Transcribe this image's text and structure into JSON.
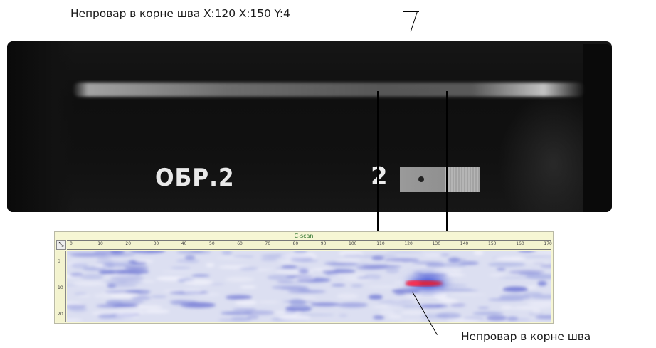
{
  "annotations": {
    "top": "Непровар в корне шва X:120 X:150 Y:4",
    "bottom": "Непровар в корне шва"
  },
  "radiograph": {
    "marker_label": "ОБР.2",
    "marker_number": "2"
  },
  "cscan": {
    "title": "C-scan",
    "corner": "⤡",
    "x_ticks": [
      "0",
      "10",
      "20",
      "30",
      "40",
      "50",
      "60",
      "70",
      "80",
      "90",
      "100",
      "110",
      "120",
      "130",
      "140",
      "150",
      "160",
      "170"
    ],
    "y_ticks": [
      "0",
      "10",
      "20"
    ]
  },
  "colors": {
    "defect_core": "#e0203a",
    "defect_halo": "#2a3fd6",
    "noise": "#8f97da"
  }
}
